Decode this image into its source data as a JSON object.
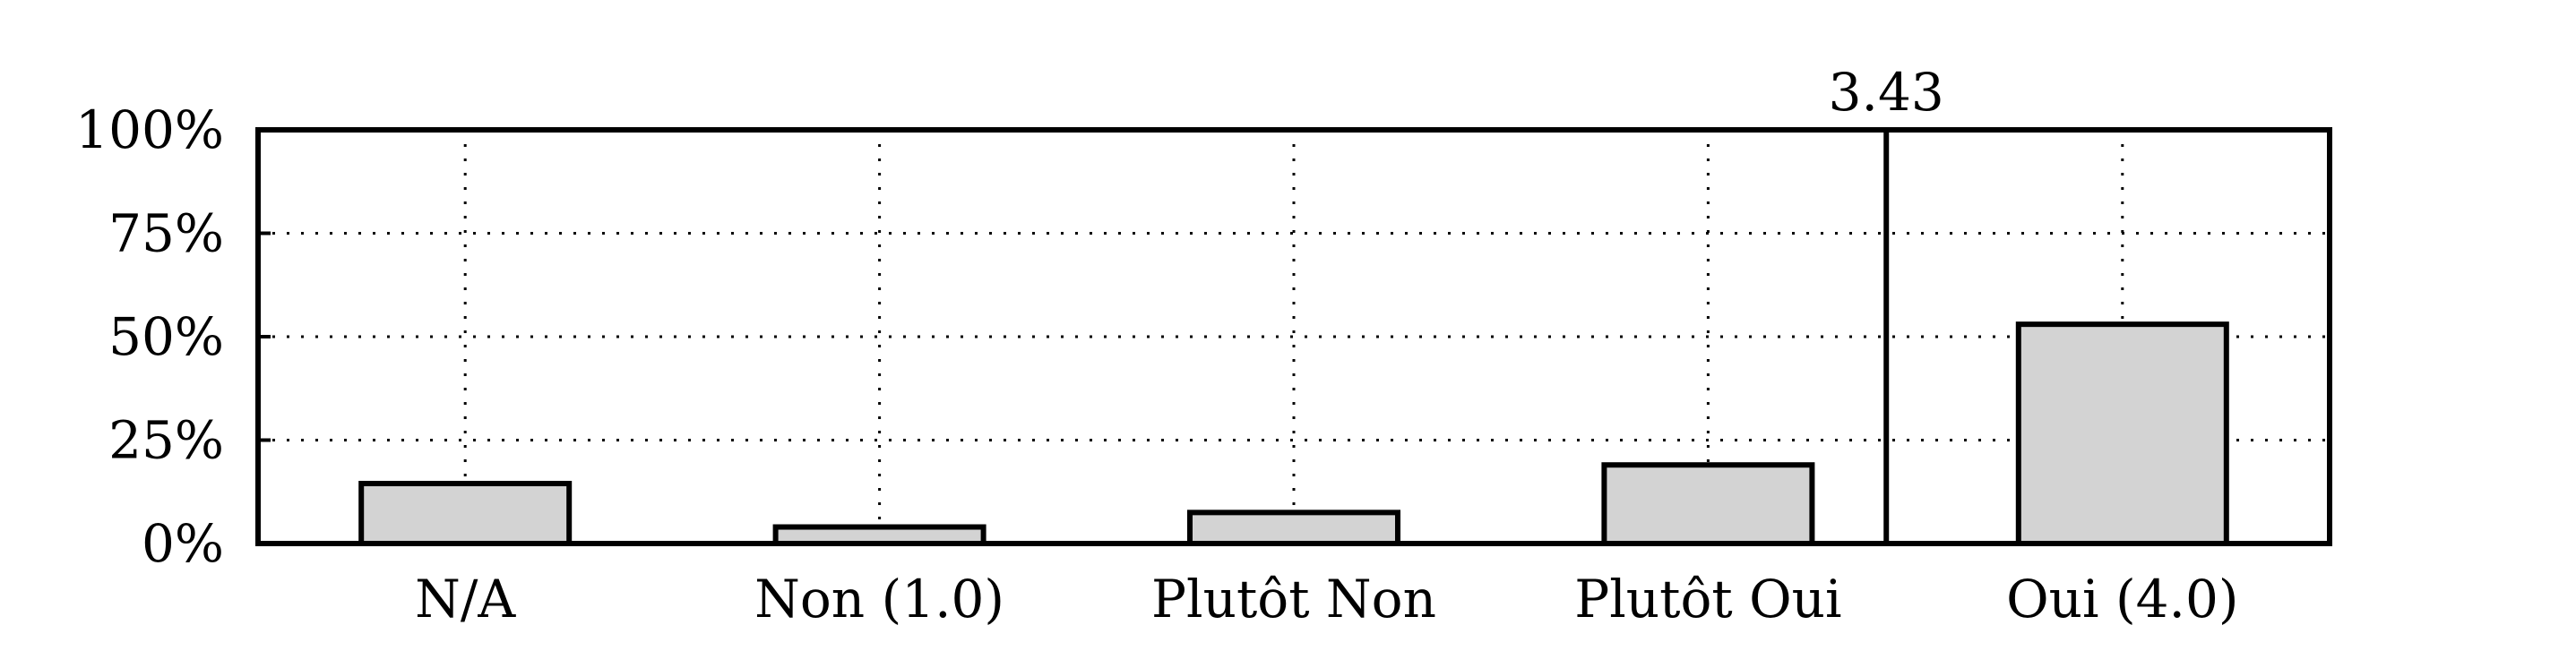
{
  "chart_data": {
    "type": "bar",
    "categories": [
      "N/A",
      "Non (1.0)",
      "Plutôt Non",
      "Plutôt Oui",
      "Oui (4.0)"
    ],
    "values": [
      14.5,
      4,
      7.5,
      19,
      53
    ],
    "ylim": [
      0,
      100
    ],
    "yticks": [
      0,
      25,
      50,
      75,
      100
    ],
    "ytick_labels": [
      "0%",
      "25%",
      "50%",
      "75%",
      "100%"
    ],
    "grid": true,
    "marker": {
      "value": 3.43,
      "label": "3.43"
    },
    "colors": {
      "bar_fill": "#d3d3d3",
      "bar_stroke": "#000000",
      "grid": "#000000",
      "axis": "#000000"
    }
  }
}
